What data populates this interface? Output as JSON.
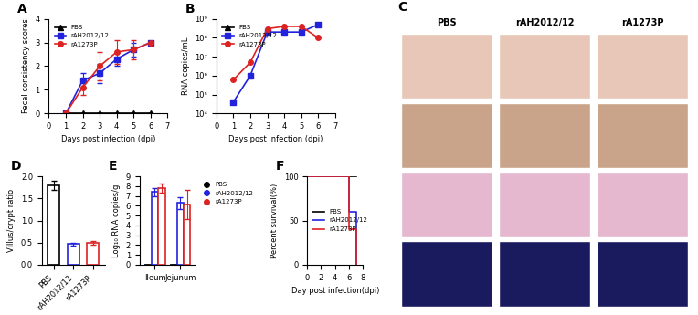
{
  "chart_data": [
    {
      "title": "A",
      "type": "line",
      "xlabel": "Days post infection (dpi)",
      "ylabel": "Fecal consistency scores",
      "x": [
        1,
        2,
        3,
        4,
        5,
        6
      ],
      "xlim": [
        0,
        7
      ],
      "xticks": [
        0,
        1,
        2,
        3,
        4,
        5,
        6,
        7
      ],
      "ylim": [
        0,
        4
      ],
      "yticks": [
        0,
        1,
        2,
        3,
        4
      ],
      "legend": "upper left",
      "series": [
        {
          "name": "PBS",
          "color": "#000000",
          "marker": "triangle",
          "values": [
            0,
            0,
            0,
            0,
            0,
            0
          ],
          "errors": [
            0,
            0,
            0,
            0,
            0,
            0
          ]
        },
        {
          "name": "rAH2012/12",
          "color": "#2222dd",
          "marker": "square",
          "values": [
            0,
            1.4,
            1.7,
            2.3,
            2.7,
            3
          ],
          "errors": [
            0,
            0.3,
            0.4,
            0.3,
            0.3,
            0
          ]
        },
        {
          "name": "rA1273P",
          "color": "#dd2222",
          "marker": "circle",
          "values": [
            0,
            1.1,
            2.0,
            2.6,
            2.7,
            3
          ],
          "errors": [
            0,
            0.3,
            0.6,
            0.5,
            0.4,
            0
          ]
        }
      ]
    },
    {
      "title": "B",
      "type": "line",
      "log": "y",
      "xlabel": "Days post infection (dpi)",
      "ylabel": "RNA copies/mL",
      "x": [
        1,
        2,
        3,
        4,
        5,
        6
      ],
      "xlim": [
        0,
        7
      ],
      "xticks": [
        0,
        1,
        2,
        3,
        4,
        5,
        6,
        7
      ],
      "ylim": [
        10000,
        1000000000
      ],
      "yticks": [
        {
          "value": 10000,
          "label": "10⁴"
        },
        {
          "value": 100000,
          "label": "10⁵"
        },
        {
          "value": 1000000,
          "label": "10⁶"
        },
        {
          "value": 10000000,
          "label": "10⁷"
        },
        {
          "value": 100000000,
          "label": "10⁸"
        },
        {
          "value": 1000000000,
          "label": "10⁹"
        }
      ],
      "legend": "upper left",
      "series": [
        {
          "name": "PBS",
          "color": "#000000",
          "marker": "triangle",
          "values": [
            null,
            null,
            null,
            null,
            null,
            null
          ]
        },
        {
          "name": "rAH2012/12",
          "color": "#2222dd",
          "marker": "square",
          "values": [
            40000,
            1000000,
            200000000,
            200000000,
            200000000,
            500000000
          ]
        },
        {
          "name": "rA1273P",
          "color": "#dd2222",
          "marker": "circle",
          "values": [
            600000,
            5000000,
            300000000,
            400000000,
            400000000,
            100000000
          ]
        }
      ]
    },
    {
      "title": "D",
      "type": "bar",
      "ylabel": "Villus/crypt ratio",
      "categories": [
        "PBS",
        "rAH2012/12",
        "rA1273P"
      ],
      "values": [
        1.8,
        0.47,
        0.49
      ],
      "errors": [
        0.1,
        0.03,
        0.04
      ],
      "colors": [
        "#000000",
        "#2222dd",
        "#dd2222"
      ],
      "ylim": [
        0,
        2.0
      ],
      "yticks": [
        {
          "value": 0,
          "label": "0.0"
        },
        0.5,
        {
          "value": 1,
          "label": "1.0"
        },
        1.5,
        {
          "value": 2,
          "label": "2.0"
        }
      ]
    },
    {
      "title": "E",
      "type": "bar",
      "ylabel": "Log₁₀ RNA copies/g",
      "categories": [
        "Ileum",
        "Jejunum"
      ],
      "ylim": [
        0,
        9
      ],
      "yticks": [
        0,
        1,
        2,
        3,
        4,
        5,
        6,
        7,
        8,
        9
      ],
      "legend": "upper left",
      "series": [
        {
          "name": "PBS",
          "color": "#000000",
          "values": [
            0,
            0
          ],
          "errors": [
            0,
            0
          ]
        },
        {
          "name": "rAH2012/12",
          "color": "#2222dd",
          "values": [
            7.4,
            6.3
          ],
          "errors": [
            0.4,
            0.6
          ]
        },
        {
          "name": "rA1273P",
          "color": "#dd2222",
          "values": [
            7.8,
            6.1
          ],
          "errors": [
            0.5,
            1.5
          ]
        }
      ]
    },
    {
      "title": "F",
      "type": "step",
      "xlabel": "Day post infection(dpi)",
      "ylabel": "Percent survival(%)",
      "x": [
        0,
        6,
        7
      ],
      "xlim": [
        0,
        8
      ],
      "xticks": [
        0,
        2,
        4,
        6,
        8
      ],
      "ylim": [
        0,
        100
      ],
      "yticks": [
        0,
        50,
        100
      ],
      "legend": "center left",
      "series": [
        {
          "name": "PBS",
          "color": "#000000",
          "values": [
            100,
            100,
            100
          ]
        },
        {
          "name": "rAH2012/12",
          "color": "#2222dd",
          "values": [
            100,
            60,
            0
          ]
        },
        {
          "name": "rA1273P",
          "color": "#dd2222",
          "values": [
            100,
            40,
            0
          ]
        }
      ]
    }
  ],
  "image_panel": {
    "title": "C",
    "columns": [
      "PBS",
      "rAH2012/12",
      "rA1273P"
    ]
  }
}
